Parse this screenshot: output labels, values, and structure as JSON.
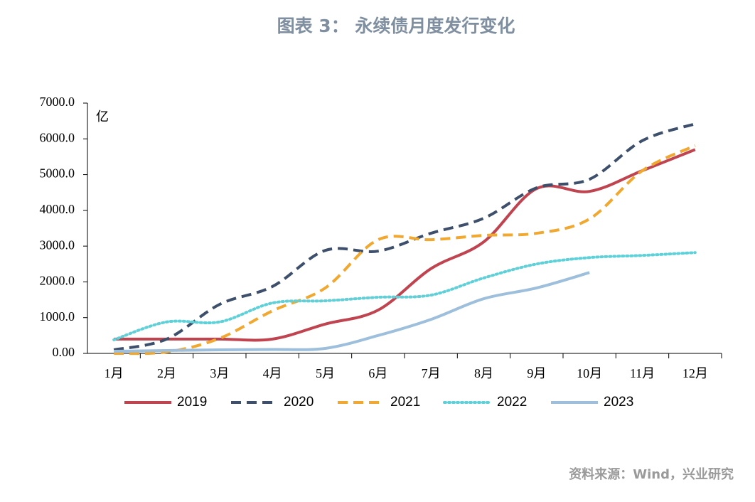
{
  "chart_data": {
    "type": "line",
    "title": "图表 3： 永续债月度发行变化",
    "y_unit": "亿",
    "source": "资料来源：Wind，兴业研究",
    "categories": [
      "1月",
      "2月",
      "3月",
      "4月",
      "5月",
      "6月",
      "7月",
      "8月",
      "9月",
      "10月",
      "11月",
      "12月"
    ],
    "ylim": [
      0,
      7000
    ],
    "yticks": [
      {
        "value": 0,
        "label": "0.00"
      },
      {
        "value": 1000,
        "label": "1000.0"
      },
      {
        "value": 2000,
        "label": "2000.0"
      },
      {
        "value": 3000,
        "label": "3000.0"
      },
      {
        "value": 4000,
        "label": "4000.0"
      },
      {
        "value": 5000,
        "label": "5000.0"
      },
      {
        "value": 6000,
        "label": "6000.0"
      },
      {
        "value": 7000,
        "label": "7000.0"
      }
    ],
    "smooth": true,
    "legend": "bottom",
    "series": [
      {
        "name": "2019",
        "color": "#c0444f",
        "style": "solid",
        "values": [
          400,
          400,
          400,
          400,
          820,
          1210,
          2370,
          3120,
          4610,
          4530,
          5110,
          5700
        ]
      },
      {
        "name": "2020",
        "color": "#3d4f6b",
        "style": "dashed",
        "values": [
          100,
          400,
          1370,
          1870,
          2880,
          2860,
          3360,
          3780,
          4630,
          4870,
          5950,
          6420
        ]
      },
      {
        "name": "2021",
        "color": "#f0a830",
        "style": "dashed",
        "values": [
          0,
          40,
          420,
          1190,
          1830,
          3180,
          3180,
          3300,
          3360,
          3760,
          5110,
          5810
        ]
      },
      {
        "name": "2022",
        "color": "#5fd0d8",
        "style": "dotted",
        "values": [
          380,
          880,
          880,
          1410,
          1470,
          1570,
          1630,
          2110,
          2500,
          2680,
          2740,
          2820
        ]
      },
      {
        "name": "2023",
        "color": "#9dbfdc",
        "style": "solid",
        "values": [
          60,
          80,
          100,
          110,
          140,
          500,
          950,
          1530,
          1830,
          2260,
          null,
          null
        ]
      }
    ]
  }
}
